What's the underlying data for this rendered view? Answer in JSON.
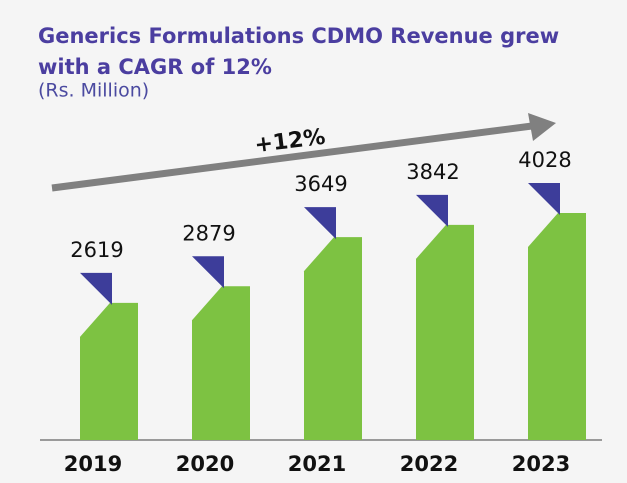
{
  "chart_data": {
    "type": "bar",
    "title": "Generics Formulations CDMO Revenue grew with a CAGR of 12%",
    "subtitle": "(Rs.  Million)",
    "annotation": "+12%",
    "categories": [
      "2019",
      "2020",
      "2021",
      "2022",
      "2023"
    ],
    "values": [
      2619,
      2879,
      3649,
      3842,
      4028
    ],
    "color": "#7dc242",
    "accent_color": "#3d3d9a"
  }
}
